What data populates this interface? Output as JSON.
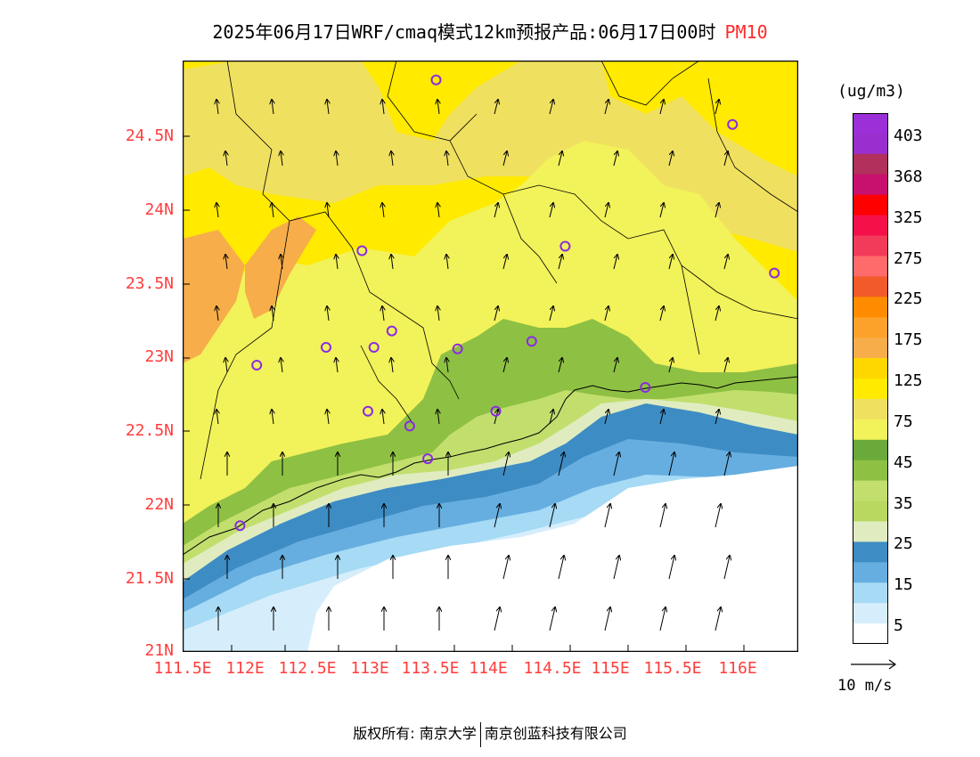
{
  "header": {
    "title": "2025年06月17日WRF/cmaq模式12km预报产品:06月17日00时",
    "variable": "PM10"
  },
  "map": {
    "lat_labels": [
      "24.5N",
      "24N",
      "23.5N",
      "23N",
      "22.5N",
      "22N",
      "21.5N",
      "21N"
    ],
    "lon_labels": [
      "111.5E",
      "112E",
      "112.5E",
      "113E",
      "113.5E",
      "114E",
      "114.5E",
      "115E",
      "115.5E",
      "116E"
    ],
    "lon_range": [
      111.5,
      116.65
    ],
    "lat_range": [
      21.0,
      24.98
    ]
  },
  "colorbar": {
    "unit": "(ug/m3)",
    "labels": [
      "403",
      "368",
      "325",
      "275",
      "225",
      "175",
      "125",
      "75",
      "45",
      "35",
      "25",
      "15",
      "5"
    ],
    "colors_top_to_bottom": [
      "#9b30d8",
      "#9a2fcf",
      "#b2305c",
      "#c8106e",
      "#ff0000",
      "#f5104a",
      "#f23a5a",
      "#ff6a6a",
      "#f25a2a",
      "#ff8c00",
      "#fca22a",
      "#f7ad4a",
      "#ffd700",
      "#ffea00",
      "#f0e060",
      "#f2f25a",
      "#6aaa3a",
      "#8ec043",
      "#c2df6e",
      "#b8d860",
      "#e0ecc0",
      "#3e8cc4",
      "#66aee0",
      "#a6daf5",
      "#d6eefb",
      "#ffffff"
    ]
  },
  "wind": {
    "reference_label": "10 m/s"
  },
  "stations": [
    {
      "lon": 113.62,
      "lat": 24.85
    },
    {
      "lon": 116.1,
      "lat": 24.55
    },
    {
      "lon": 113.0,
      "lat": 23.7
    },
    {
      "lon": 114.7,
      "lat": 23.73
    },
    {
      "lon": 116.45,
      "lat": 23.55
    },
    {
      "lon": 113.25,
      "lat": 23.16
    },
    {
      "lon": 112.7,
      "lat": 23.05
    },
    {
      "lon": 113.1,
      "lat": 23.05
    },
    {
      "lon": 113.8,
      "lat": 23.04
    },
    {
      "lon": 114.42,
      "lat": 23.09
    },
    {
      "lon": 112.12,
      "lat": 22.93
    },
    {
      "lon": 115.37,
      "lat": 22.78
    },
    {
      "lon": 113.05,
      "lat": 22.62
    },
    {
      "lon": 114.12,
      "lat": 22.62
    },
    {
      "lon": 113.4,
      "lat": 22.52
    },
    {
      "lon": 113.55,
      "lat": 22.3
    },
    {
      "lon": 111.98,
      "lat": 21.85
    }
  ],
  "footer": {
    "copyright_label": "版权所有:",
    "org1": "南京大学",
    "org2": "南京创蓝科技有限公司"
  }
}
